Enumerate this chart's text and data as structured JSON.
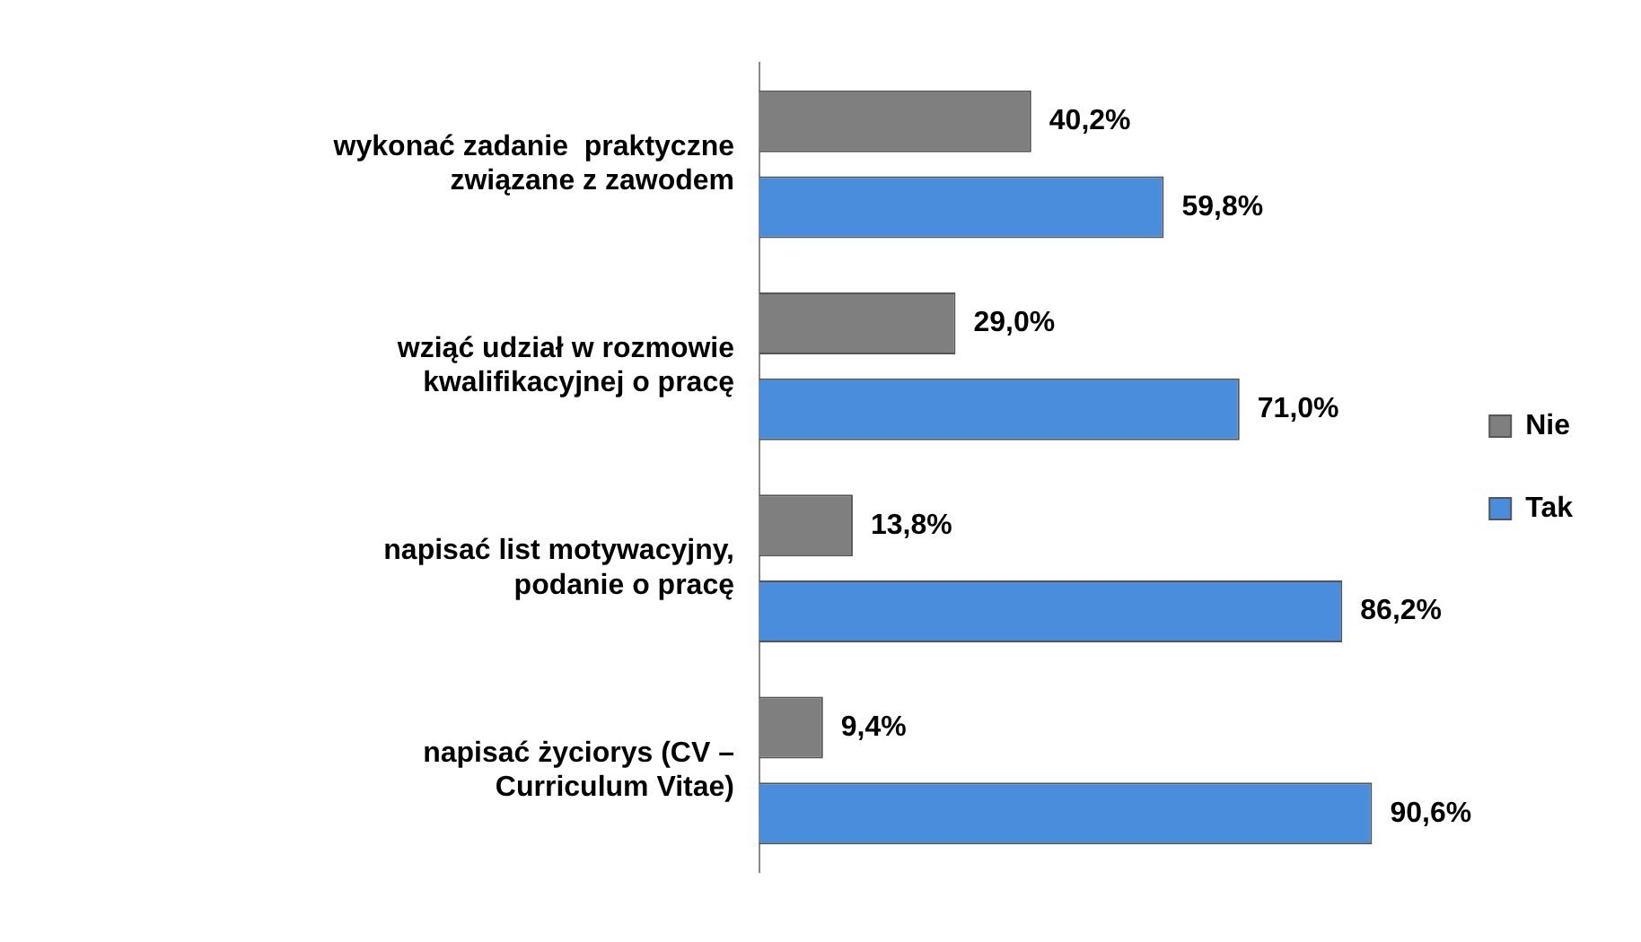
{
  "chart_data": {
    "type": "bar",
    "orientation": "horizontal",
    "categories": [
      "wykonać zadanie  praktyczne związane z zawodem",
      "wziąć udział w rozmowie kwalifikacyjnej o pracę",
      "napisać list motywacyjny, podanie o pracę",
      "napisać życiorys (CV – Curriculum Vitae)"
    ],
    "series": [
      {
        "name": "Nie",
        "color": "#7f7f7f",
        "values": [
          40.2,
          29.0,
          13.8,
          9.4
        ],
        "value_labels": [
          "40,2%",
          "29,0%",
          "13,8%",
          "9,4%"
        ]
      },
      {
        "name": "Tak",
        "color": "#4a8ddc",
        "values": [
          59.8,
          71.0,
          86.2,
          90.6
        ],
        "value_labels": [
          "59,8%",
          "71,0%",
          "86,2%",
          "90,6%"
        ]
      }
    ],
    "tick_labels": "y",
    "grid": false,
    "legend": "right"
  }
}
